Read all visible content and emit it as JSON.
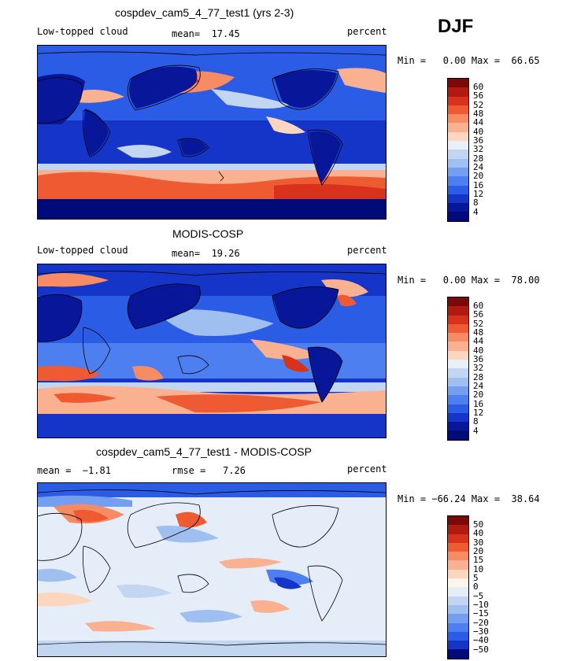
{
  "season": "DJF",
  "panels": [
    {
      "title": "cospdev_cam5_4_77_test1 (yrs 2-3)",
      "left": "Low-topped cloud",
      "center": "mean=  17.45",
      "right": "percent",
      "minmax": "Min =   0.00 Max =  66.65",
      "levels": [
        "60",
        "56",
        "52",
        "48",
        "44",
        "40",
        "36",
        "32",
        "28",
        "24",
        "20",
        "16",
        "12",
        "8",
        "4"
      ]
    },
    {
      "title": "MODIS-COSP",
      "left": "Low-topped cloud",
      "center": "mean=  19.26",
      "right": "percent",
      "minmax": "Min =   0.00 Max =  78.00",
      "levels": [
        "60",
        "56",
        "52",
        "48",
        "44",
        "40",
        "36",
        "32",
        "28",
        "24",
        "20",
        "16",
        "12",
        "8",
        "4"
      ]
    },
    {
      "title": "cospdev_cam5_4_77_test1 - MODIS-COSP",
      "left": "mean =  −1.81",
      "center": "rmse =   7.26",
      "right": "percent",
      "minmax": "Min = −66.24 Max =  38.64",
      "levels": [
        "50",
        "40",
        "30",
        "20",
        "15",
        "10",
        "5",
        "0",
        "−5",
        "−10",
        "−15",
        "−20",
        "−30",
        "−40",
        "−50"
      ]
    }
  ],
  "colors": {
    "seq": [
      "#7a0a0a",
      "#b01a10",
      "#d8321c",
      "#ee5a32",
      "#f78b63",
      "#fab191",
      "#fdd6c0",
      "#e9f1f8",
      "#c3d6f1",
      "#9ebff0",
      "#749ff0",
      "#4d7ff0",
      "#2b5ce6",
      "#1535c9",
      "#08179a",
      "#000a78"
    ],
    "div": [
      "#7a0a0a",
      "#b01a10",
      "#d8321c",
      "#ee5a32",
      "#f78b63",
      "#fab191",
      "#fdd6c0",
      "#fff4ea",
      "#e4edf8",
      "#c3d6f1",
      "#9ebff0",
      "#749ff0",
      "#4d7ff0",
      "#2b5ce6",
      "#1535c9",
      "#000a78"
    ]
  }
}
